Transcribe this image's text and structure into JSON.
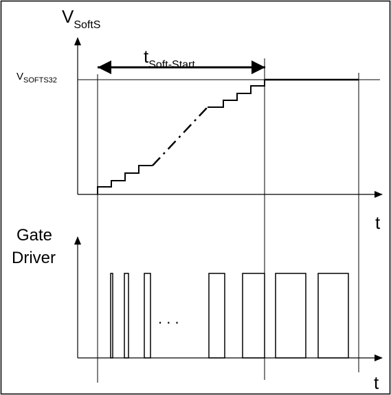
{
  "upper_plot": {
    "y_label_main": "V",
    "y_label_sub": "SoftS",
    "level_label_main": "V",
    "level_label_sub": "SOFTS32",
    "interval_label_main": "t",
    "interval_label_sub": "Soft-Start",
    "x_label": "t"
  },
  "lower_plot": {
    "y_label_line1": "Gate",
    "y_label_line2": "Driver",
    "x_label": "t",
    "ellipsis": ". . ."
  }
}
